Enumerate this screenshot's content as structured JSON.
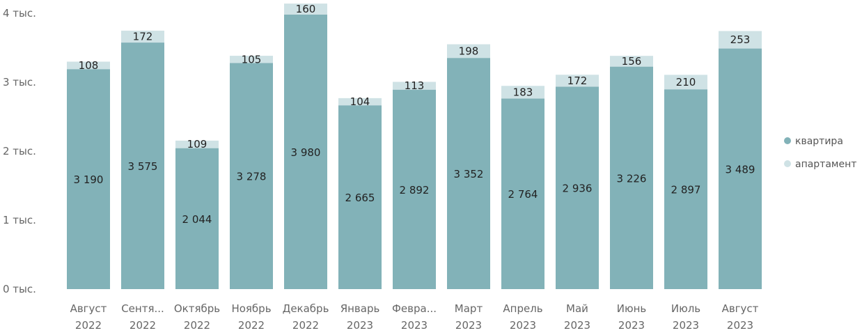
{
  "chart_data": {
    "type": "bar",
    "stacked": true,
    "title": "",
    "xlabel": "",
    "ylabel": "",
    "ylim": [
      0,
      4000
    ],
    "yticks": [
      0,
      1000,
      2000,
      3000,
      4000
    ],
    "ytick_labels": [
      "0 тыс.",
      "1 тыс.",
      "2 тыс.",
      "3 тыс.",
      "4 тыс."
    ],
    "grid": false,
    "legend_position": "right",
    "categories": [
      [
        "Август",
        "2022"
      ],
      [
        "Сентя...",
        "2022"
      ],
      [
        "Октябрь",
        "2022"
      ],
      [
        "Ноябрь",
        "2022"
      ],
      [
        "Декабрь",
        "2022"
      ],
      [
        "Январь",
        "2023"
      ],
      [
        "Февра...",
        "2023"
      ],
      [
        "Март",
        "2023"
      ],
      [
        "Апрель",
        "2023"
      ],
      [
        "Май",
        "2023"
      ],
      [
        "Июнь",
        "2023"
      ],
      [
        "Июль",
        "2023"
      ],
      [
        "Август",
        "2023"
      ]
    ],
    "series": [
      {
        "name": "квартира",
        "color": "#82b2b8",
        "values": [
          3190,
          3575,
          2044,
          3278,
          3980,
          2665,
          2892,
          3352,
          2764,
          2936,
          3226,
          2897,
          3489
        ],
        "labels": [
          "3 190",
          "3 575",
          "2 044",
          "3 278",
          "3 980",
          "2 665",
          "2 892",
          "3 352",
          "2 764",
          "2 936",
          "3 226",
          "2 897",
          "3 489"
        ]
      },
      {
        "name": "апартамент",
        "color": "#cfe2e5",
        "values": [
          108,
          172,
          109,
          105,
          160,
          104,
          113,
          198,
          183,
          172,
          156,
          210,
          253
        ],
        "labels": [
          "108",
          "172",
          "109",
          "105",
          "160",
          "104",
          "113",
          "198",
          "183",
          "172",
          "156",
          "210",
          "253"
        ]
      }
    ]
  }
}
